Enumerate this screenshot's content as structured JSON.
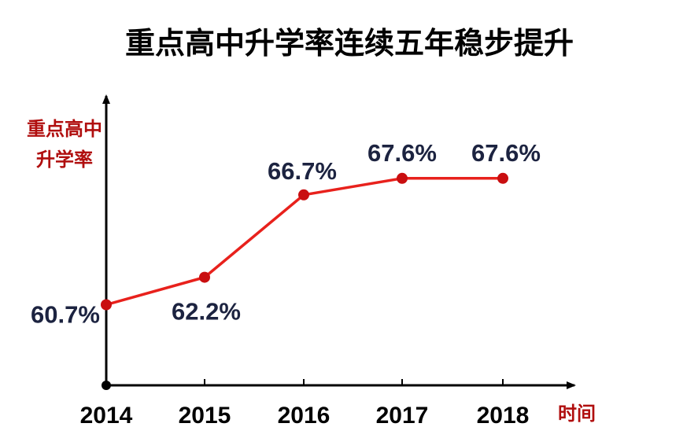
{
  "chart_data": {
    "type": "line",
    "title": "重点高中升学率连续五年稳步提升",
    "ylabel": "重点高中升学率",
    "ylabel_lines": [
      "重点高中",
      "升学率"
    ],
    "xlabel": "时间",
    "categories": [
      "2014",
      "2015",
      "2016",
      "2017",
      "2018"
    ],
    "values": [
      60.7,
      62.2,
      66.7,
      67.6,
      67.6
    ],
    "value_labels": [
      "60.7%",
      "62.2%",
      "66.7%",
      "67.6%",
      "67.6%"
    ],
    "unit": "%",
    "ylim": [
      56.3,
      72.1
    ],
    "grid": false,
    "legend": "none",
    "colors": {
      "line": "#e8211c",
      "marker": "#c90e10",
      "axis": "#000000",
      "axis_label": "#b00e0e",
      "data_label": "#1c2340"
    }
  }
}
